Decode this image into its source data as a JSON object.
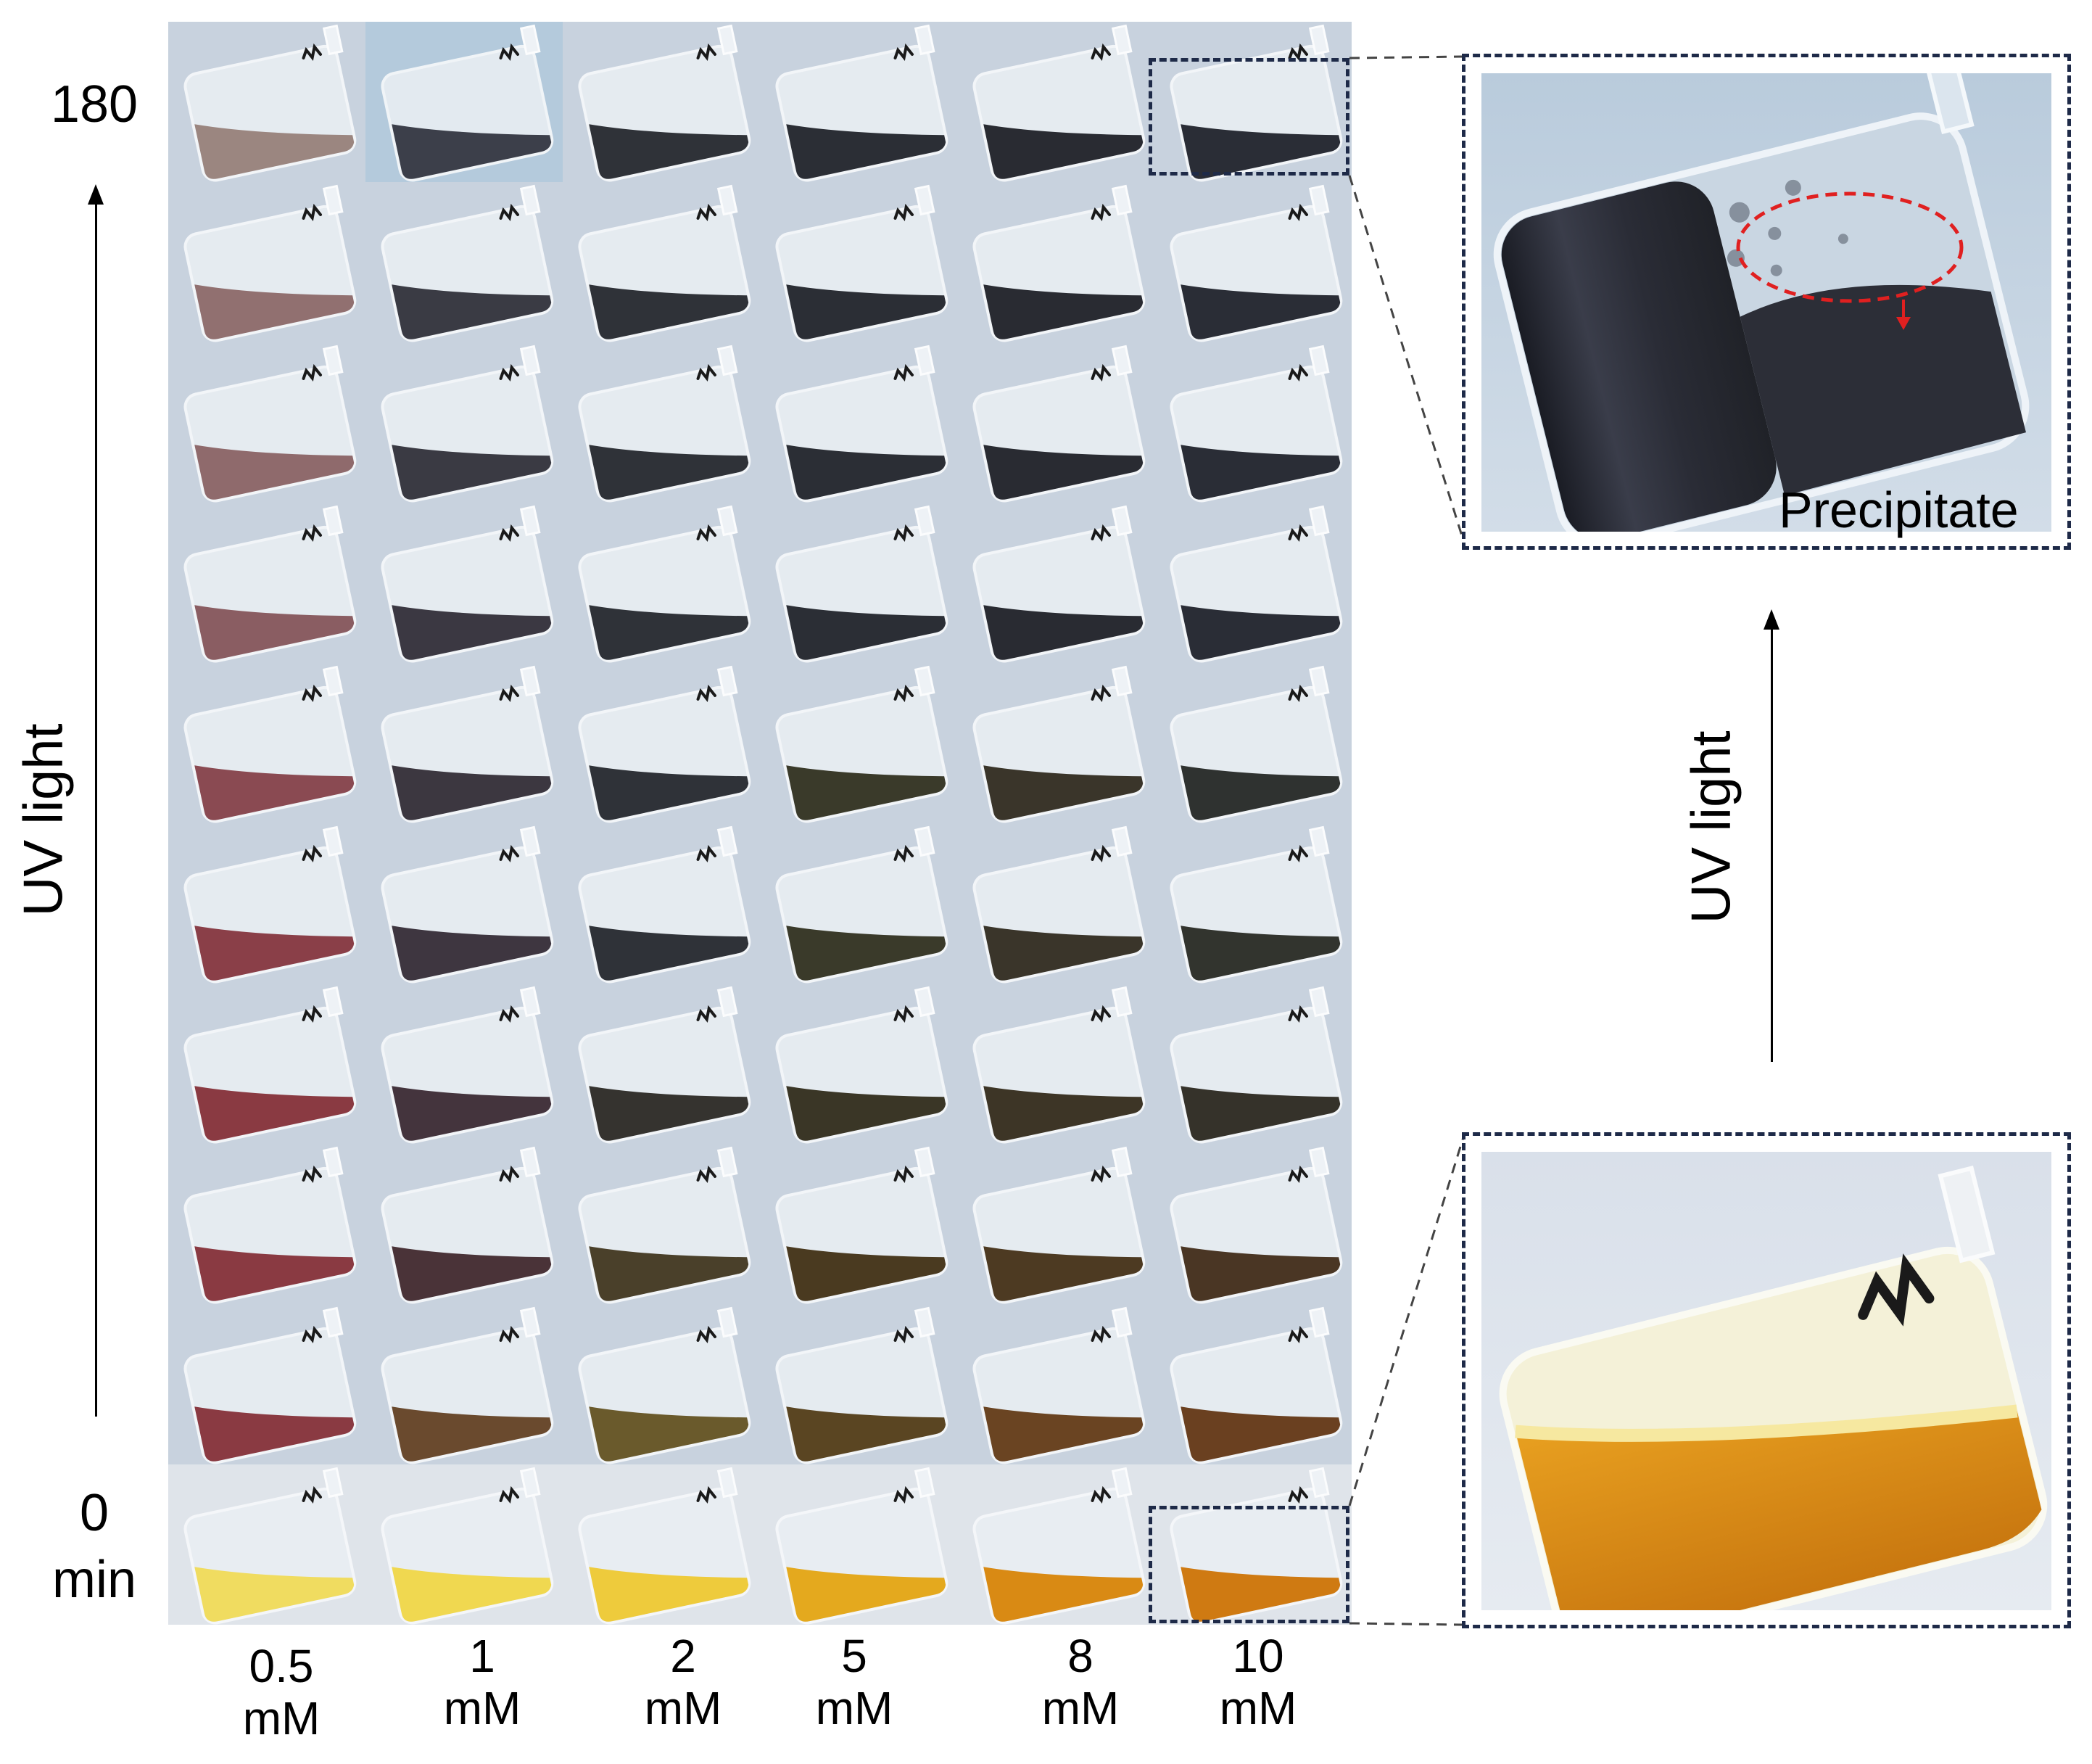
{
  "figure": {
    "time_axis": {
      "top_label": "180",
      "bottom_label_value": "0",
      "bottom_label_unit": "min",
      "direction_label": "UV light"
    },
    "concentration_labels": [
      {
        "value": "0.5",
        "unit": "mM"
      },
      {
        "value": "1",
        "unit": "mM"
      },
      {
        "value": "2",
        "unit": "mM"
      },
      {
        "value": "5",
        "unit": "mM"
      },
      {
        "value": "8",
        "unit": "mM"
      },
      {
        "value": "10",
        "unit": "mM"
      }
    ],
    "right_panel": {
      "direction_label": "UV light",
      "annotation": "Precipitate"
    },
    "colors": {
      "frame_dash": "#1e2a48",
      "annotation_red": "#e02020",
      "background_photo": "#c8d2de",
      "yellow_solution": "#f2d64a",
      "orange_solution": "#d98a14",
      "red_solution": "#8e3a42",
      "dark_solution": "#2a2c34"
    },
    "grid_liquid_colors": [
      [
        "#9b8680",
        "#3c3f4a",
        "#2f3238",
        "#2b2e35",
        "#292b32",
        "#2a2d36"
      ],
      [
        "#917070",
        "#3a3b44",
        "#2f3238",
        "#2b2e35",
        "#292b32",
        "#2a2d36"
      ],
      [
        "#8f6a6c",
        "#3a3a43",
        "#2f3238",
        "#2b2e35",
        "#292b32",
        "#2a2d36"
      ],
      [
        "#8a5d62",
        "#3b3842",
        "#2f3238",
        "#2b2e35",
        "#292b32",
        "#2a2d36"
      ],
      [
        "#8a4a52",
        "#3c3740",
        "#2f3238",
        "#3a3a2a",
        "#3a352a",
        "#2f3230"
      ],
      [
        "#8a3f48",
        "#3e3640",
        "#2f3238",
        "#3a3a2a",
        "#3a352a",
        "#32342e"
      ],
      [
        "#8a3a42",
        "#44343d",
        "#35332f",
        "#3a3626",
        "#3d3526",
        "#35322a"
      ],
      [
        "#8a3a42",
        "#4a3338",
        "#4a402a",
        "#4a3a20",
        "#4d3a22",
        "#4a3624"
      ],
      [
        "#8a3a42",
        "#6a4a2e",
        "#6a5a2c",
        "#5a4522",
        "#6a4422",
        "#6a4020"
      ],
      [
        "#f0dc60",
        "#f0d850",
        "#eecb3c",
        "#e4a91e",
        "#d98a14",
        "#cf7a12"
      ]
    ]
  }
}
